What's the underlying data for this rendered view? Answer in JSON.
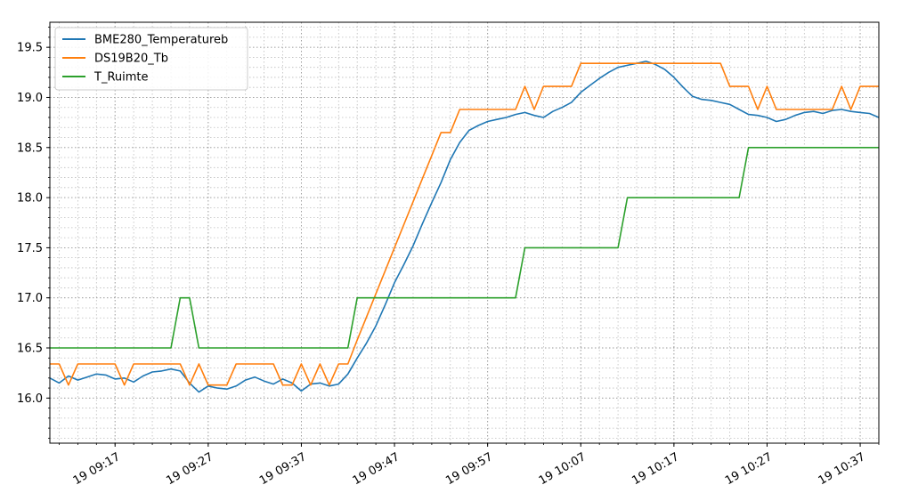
{
  "chart_data": {
    "type": "line",
    "title": "",
    "xlabel": "",
    "ylabel": "",
    "grid": true,
    "legend_position": "top-left",
    "xlim": [
      "19 09:10",
      "19 10:39"
    ],
    "ylim": [
      15.55,
      19.75
    ],
    "x_tick_values": [
      "19 09:17",
      "19 09:27",
      "19 09:37",
      "19 09:47",
      "19 09:57",
      "19 10:07",
      "19 10:17",
      "19 10:27",
      "19 10:37"
    ],
    "x_tick_labels": [
      "19 09:17",
      "19 09:27",
      "19 09:37",
      "19 09:47",
      "19 09:57",
      "19 10:07",
      "19 10:17",
      "19 10:27",
      "19 10:37"
    ],
    "y_tick_values": [
      16.0,
      16.5,
      17.0,
      17.5,
      18.0,
      18.5,
      19.0,
      19.5
    ],
    "y_tick_labels": [
      "16.0",
      "16.5",
      "17.0",
      "17.5",
      "18.0",
      "18.5",
      "19.0",
      "19.5"
    ],
    "series": [
      {
        "name": "BME280_Temperatureb",
        "color": "#1f77b4",
        "x": [
          "19 09:10",
          "19 09:11",
          "19 09:12",
          "19 09:13",
          "19 09:14",
          "19 09:15",
          "19 09:16",
          "19 09:17",
          "19 09:18",
          "19 09:19",
          "19 09:20",
          "19 09:21",
          "19 09:22",
          "19 09:23",
          "19 09:24",
          "19 09:25",
          "19 09:26",
          "19 09:27",
          "19 09:28",
          "19 09:29",
          "19 09:30",
          "19 09:31",
          "19 09:32",
          "19 09:33",
          "19 09:34",
          "19 09:35",
          "19 09:36",
          "19 09:37",
          "19 09:38",
          "19 09:39",
          "19 09:40",
          "19 09:41",
          "19 09:42",
          "19 09:43",
          "19 09:44",
          "19 09:45",
          "19 09:46",
          "19 09:47",
          "19 09:48",
          "19 09:49",
          "19 09:50",
          "19 09:51",
          "19 09:52",
          "19 09:53",
          "19 09:54",
          "19 09:55",
          "19 09:56",
          "19 09:57",
          "19 09:58",
          "19 09:59",
          "19 10:00",
          "19 10:01",
          "19 10:02",
          "19 10:03",
          "19 10:04",
          "19 10:05",
          "19 10:06",
          "19 10:07",
          "19 10:08",
          "19 10:09",
          "19 10:10",
          "19 10:11",
          "19 10:12",
          "19 10:13",
          "19 10:14",
          "19 10:15",
          "19 10:16",
          "19 10:17",
          "19 10:18",
          "19 10:19",
          "19 10:20",
          "19 10:21",
          "19 10:22",
          "19 10:23",
          "19 10:24",
          "19 10:25",
          "19 10:26",
          "19 10:27",
          "19 10:28",
          "19 10:29",
          "19 10:30",
          "19 10:31",
          "19 10:32",
          "19 10:33",
          "19 10:34",
          "19 10:35",
          "19 10:36",
          "19 10:37",
          "19 10:38",
          "19 10:39"
        ],
        "values": [
          16.2,
          16.15,
          16.22,
          16.18,
          16.21,
          16.24,
          16.23,
          16.19,
          16.2,
          16.16,
          16.22,
          16.26,
          16.27,
          16.29,
          16.27,
          16.15,
          16.06,
          16.12,
          16.1,
          16.09,
          16.12,
          16.18,
          16.21,
          16.17,
          16.14,
          16.19,
          16.15,
          16.07,
          16.14,
          16.15,
          16.12,
          16.14,
          16.24,
          16.4,
          16.55,
          16.72,
          16.93,
          17.15,
          17.33,
          17.52,
          17.74,
          17.95,
          18.15,
          18.38,
          18.55,
          18.67,
          18.72,
          18.76,
          18.78,
          18.8,
          18.83,
          18.85,
          18.82,
          18.8,
          18.86,
          18.9,
          18.95,
          19.05,
          19.12,
          19.19,
          19.25,
          19.3,
          19.32,
          19.34,
          19.36,
          19.33,
          19.28,
          19.2,
          19.1,
          19.01,
          18.98,
          18.97,
          18.95,
          18.93,
          18.88,
          18.83,
          18.82,
          18.8,
          18.76,
          18.78,
          18.82,
          18.85,
          18.86,
          18.84,
          18.87,
          18.88,
          18.86,
          18.85,
          18.84,
          18.8
        ]
      },
      {
        "name": "DS19B20_Tb",
        "color": "#ff7f0e",
        "x": [
          "19 09:10",
          "19 09:11",
          "19 09:12",
          "19 09:13",
          "19 09:14",
          "19 09:15",
          "19 09:16",
          "19 09:17",
          "19 09:18",
          "19 09:19",
          "19 09:20",
          "19 09:21",
          "19 09:22",
          "19 09:23",
          "19 09:24",
          "19 09:25",
          "19 09:26",
          "19 09:27",
          "19 09:28",
          "19 09:29",
          "19 09:30",
          "19 09:31",
          "19 09:32",
          "19 09:33",
          "19 09:34",
          "19 09:35",
          "19 09:36",
          "19 09:37",
          "19 09:38",
          "19 09:39",
          "19 09:40",
          "19 09:41",
          "19 09:42",
          "19 09:43",
          "19 09:44",
          "19 09:45",
          "19 09:46",
          "19 09:47",
          "19 09:48",
          "19 09:49",
          "19 09:50",
          "19 09:51",
          "19 09:52",
          "19 09:53",
          "19 09:54",
          "19 09:55",
          "19 09:56",
          "19 09:57",
          "19 09:58",
          "19 09:59",
          "19 10:00",
          "19 10:01",
          "19 10:02",
          "19 10:03",
          "19 10:04",
          "19 10:05",
          "19 10:06",
          "19 10:07",
          "19 10:08",
          "19 10:09",
          "19 10:10",
          "19 10:11",
          "19 10:12",
          "19 10:13",
          "19 10:14",
          "19 10:15",
          "19 10:16",
          "19 10:17",
          "19 10:18",
          "19 10:19",
          "19 10:20",
          "19 10:21",
          "19 10:22",
          "19 10:23",
          "19 10:24",
          "19 10:25",
          "19 10:26",
          "19 10:27",
          "19 10:28",
          "19 10:29",
          "19 10:30",
          "19 10:31",
          "19 10:32",
          "19 10:33",
          "19 10:34",
          "19 10:35",
          "19 10:36",
          "19 10:37",
          "19 10:38",
          "19 10:39"
        ],
        "values": [
          16.34,
          16.34,
          16.13,
          16.34,
          16.34,
          16.34,
          16.34,
          16.34,
          16.13,
          16.34,
          16.34,
          16.34,
          16.34,
          16.34,
          16.34,
          16.13,
          16.34,
          16.13,
          16.13,
          16.13,
          16.34,
          16.34,
          16.34,
          16.34,
          16.34,
          16.13,
          16.13,
          16.34,
          16.13,
          16.34,
          16.13,
          16.34,
          16.34,
          16.58,
          16.81,
          17.04,
          17.27,
          17.5,
          17.73,
          17.96,
          18.19,
          18.42,
          18.65,
          18.65,
          18.88,
          18.88,
          18.88,
          18.88,
          18.88,
          18.88,
          18.88,
          19.11,
          18.88,
          19.11,
          19.11,
          19.11,
          19.11,
          19.34,
          19.34,
          19.34,
          19.34,
          19.34,
          19.34,
          19.34,
          19.34,
          19.34,
          19.34,
          19.34,
          19.34,
          19.34,
          19.34,
          19.34,
          19.34,
          19.11,
          19.11,
          19.11,
          18.88,
          19.11,
          18.88,
          18.88,
          18.88,
          18.88,
          18.88,
          18.88,
          18.88,
          19.11,
          18.88,
          19.11,
          19.11,
          19.11
        ]
      },
      {
        "name": "T_Ruimte",
        "color": "#2ca02c",
        "x": [
          "19 09:10",
          "19 09:23",
          "19 09:24",
          "19 09:25",
          "19 09:26",
          "19 09:42",
          "19 09:43",
          "19 10:00",
          "19 10:01",
          "19 10:11",
          "19 10:12",
          "19 10:24",
          "19 10:25",
          "19 10:39"
        ],
        "values": [
          16.5,
          16.5,
          17.0,
          17.0,
          16.5,
          16.5,
          17.0,
          17.0,
          17.5,
          17.5,
          18.0,
          18.0,
          18.5,
          18.5
        ]
      }
    ]
  }
}
